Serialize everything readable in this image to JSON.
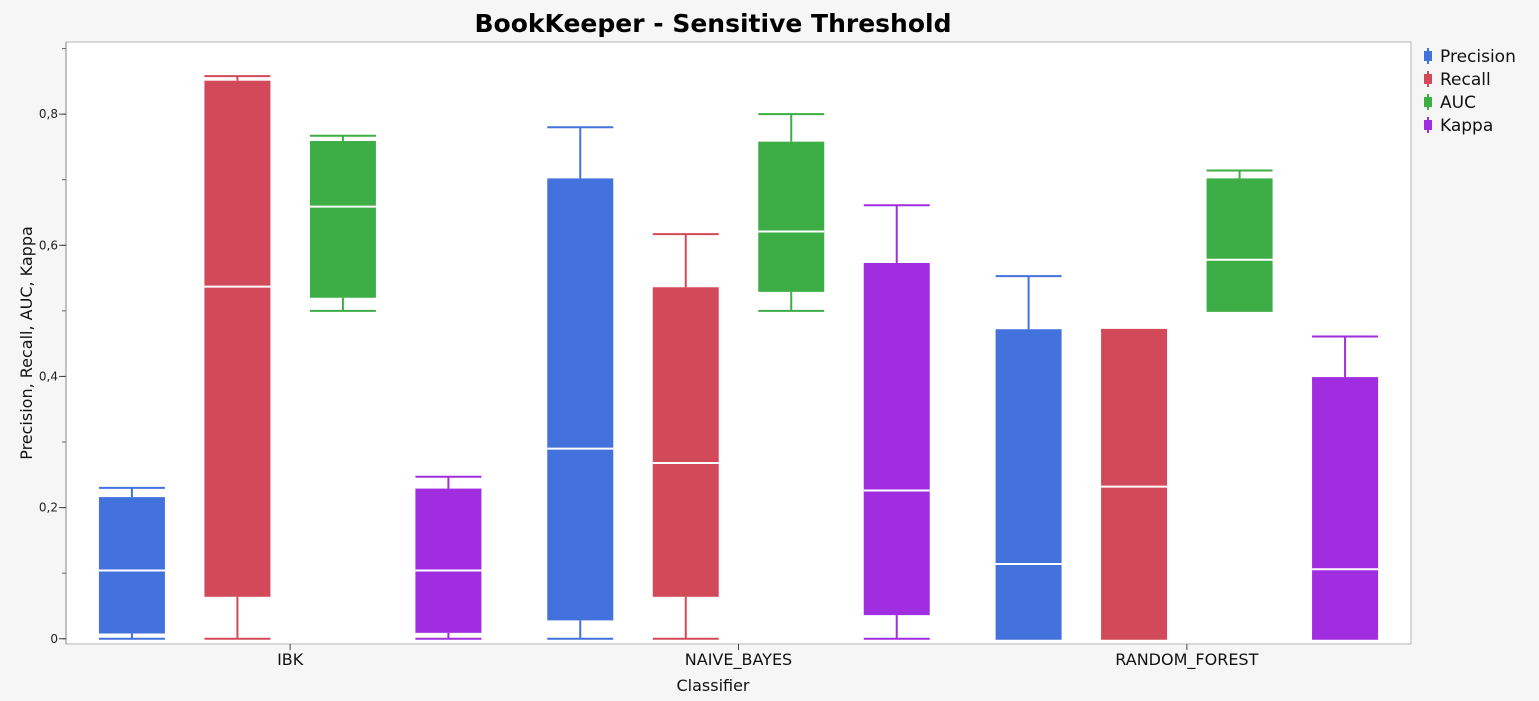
{
  "chart_data": {
    "type": "boxplot",
    "title": "BookKeeper - Sensitive Threshold",
    "xlabel": "Classifier",
    "ylabel": "Precision, Recall, AUC, Kappa",
    "ylim": [
      -0.008,
      0.91
    ],
    "yticks": [
      0,
      0.2,
      0.4,
      0.6,
      0.8
    ],
    "ytick_labels": [
      "0",
      "0,2",
      "0,4",
      "0,6",
      "0,8"
    ],
    "categories": [
      "IBK",
      "NAIVE_BAYES",
      "RANDOM_FOREST"
    ],
    "legend_position": "top-right",
    "series": [
      {
        "name": "Precision",
        "color": "#4472dc",
        "boxes": [
          {
            "min": 0.0,
            "q1": 0.008,
            "median": 0.104,
            "q3": 0.216,
            "max": 0.23
          },
          {
            "min": 0.0,
            "q1": 0.028,
            "median": 0.29,
            "q3": 0.702,
            "max": 0.78
          },
          {
            "min": 0.0,
            "q1": 0.0,
            "median": 0.114,
            "q3": 0.472,
            "max": 0.553
          }
        ]
      },
      {
        "name": "Recall",
        "color": "#d24a59",
        "boxes": [
          {
            "min": 0.0,
            "q1": 0.064,
            "median": 0.537,
            "q3": 0.851,
            "max": 0.858
          },
          {
            "min": 0.0,
            "q1": 0.064,
            "median": 0.268,
            "q3": 0.536,
            "max": 0.617
          },
          {
            "min": 0.0,
            "q1": 0.0,
            "median": 0.232,
            "q3": 0.471,
            "max": 0.471
          }
        ]
      },
      {
        "name": "AUC",
        "color": "#3dae45",
        "boxes": [
          {
            "min": 0.5,
            "q1": 0.52,
            "median": 0.659,
            "q3": 0.759,
            "max": 0.767
          },
          {
            "min": 0.5,
            "q1": 0.529,
            "median": 0.621,
            "q3": 0.758,
            "max": 0.8
          },
          {
            "min": 0.5,
            "q1": 0.5,
            "median": 0.578,
            "q3": 0.702,
            "max": 0.714
          }
        ]
      },
      {
        "name": "Kappa",
        "color": "#a12de0",
        "boxes": [
          {
            "min": 0.0,
            "q1": 0.009,
            "median": 0.104,
            "q3": 0.229,
            "max": 0.247
          },
          {
            "min": 0.0,
            "q1": 0.036,
            "median": 0.226,
            "q3": 0.573,
            "max": 0.661
          },
          {
            "min": 0.0,
            "q1": 0.0,
            "median": 0.106,
            "q3": 0.399,
            "max": 0.461
          }
        ]
      }
    ]
  }
}
